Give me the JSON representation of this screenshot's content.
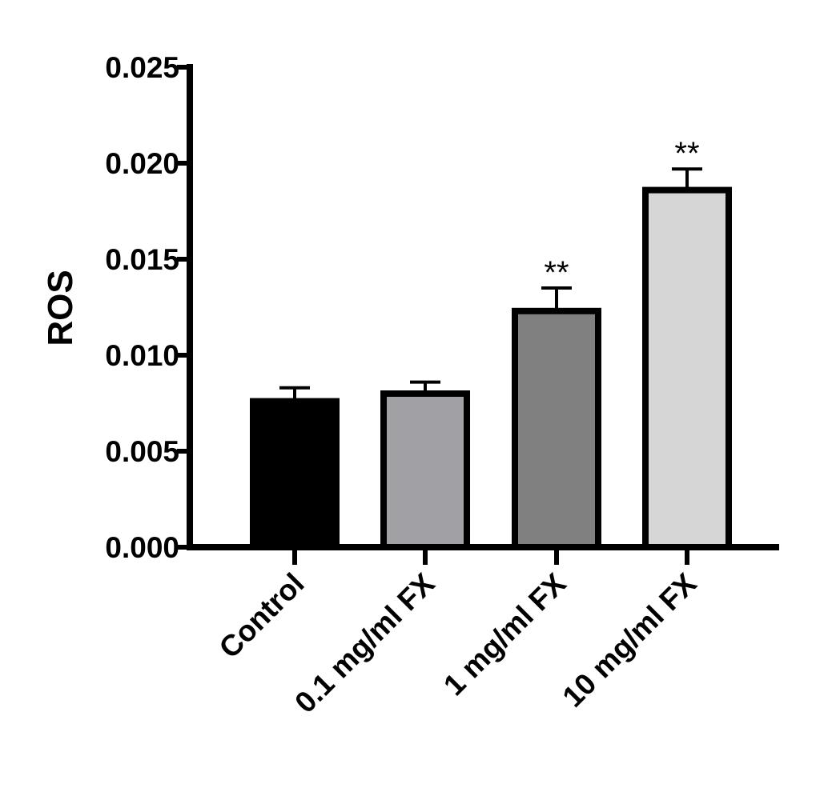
{
  "chart_data": {
    "type": "bar",
    "title": "",
    "xlabel": "",
    "ylabel": "ROS",
    "ylim": [
      0,
      0.025
    ],
    "yticks": [
      "0.000",
      "0.005",
      "0.010",
      "0.015",
      "0.020",
      "0.025"
    ],
    "ytick_values": [
      0,
      0.005,
      0.01,
      0.015,
      0.02,
      0.025
    ],
    "categories": [
      "Control",
      "0.1 mg/ml FX",
      "1 mg/ml FX",
      "10 mg/ml FX"
    ],
    "values": [
      0.0076,
      0.008,
      0.0123,
      0.0186
    ],
    "error_upper": [
      0.0083,
      0.0086,
      0.0135,
      0.0197
    ],
    "annotations": [
      "",
      "",
      "**",
      "**"
    ],
    "colors": [
      "#000000",
      "#a1a1a5",
      "#808080",
      "#d6d6d6"
    ],
    "grid": false,
    "legend": "none"
  }
}
